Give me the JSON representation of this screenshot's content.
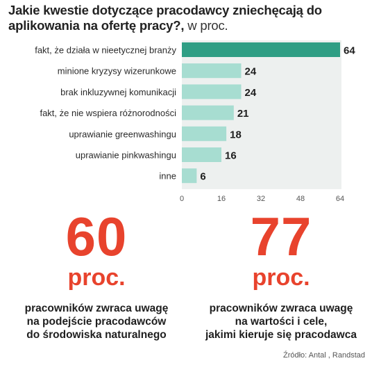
{
  "header": {
    "title": "Jakie kwestie dotyczące pracodawcy zniechęcają do aplikowania na ofertę pracy?,",
    "unit": "w proc."
  },
  "chart_data": {
    "type": "bar",
    "orientation": "horizontal",
    "categories": [
      "fakt, że działa w nieetycznej branży",
      "minione kryzysy wizerunkowe",
      "brak inkluzywnej komunikacji",
      "fakt, że nie wspiera różnorodności",
      "uprawianie greenwashingu",
      "uprawianie pinkwashingu",
      "inne"
    ],
    "values": [
      64,
      24,
      24,
      21,
      18,
      16,
      6
    ],
    "xlim": [
      0,
      64
    ],
    "x_ticks": [
      "0",
      "16",
      "32",
      "48",
      "64"
    ],
    "colors": {
      "highlight_bar": "#2f9e84",
      "bar": "#a7ddd1",
      "plot_bg": "#edf0ef"
    },
    "grid": false,
    "legend": "none"
  },
  "stats": [
    {
      "value": "60",
      "unit": "proc.",
      "description": "pracowników zwraca uwagę\nna podejście pracodawców\ndo środowiska naturalnego"
    },
    {
      "value": "77",
      "unit": "proc.",
      "description": "pracowników zwraca uwagę\nna wartości i cele,\njakimi kieruje się pracodawca"
    }
  ],
  "accent_color": "#e8432d",
  "source": "Źródło: Antal , Randstad"
}
